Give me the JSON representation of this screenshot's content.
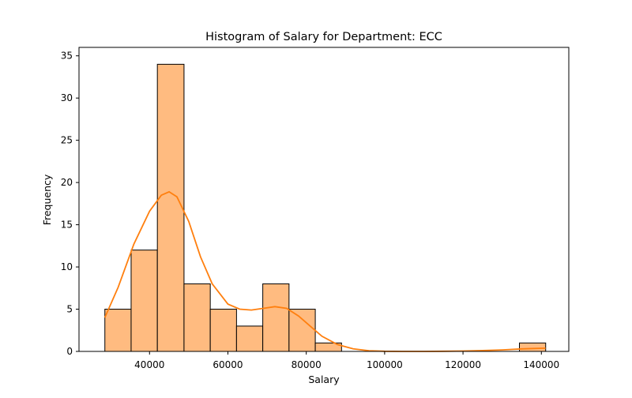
{
  "chart_data": {
    "type": "bar",
    "title": "Histogram of Salary for Department: ECC",
    "xlabel": "Salary",
    "ylabel": "Frequency",
    "xlim": [
      22000,
      147000
    ],
    "ylim": [
      0,
      36
    ],
    "xticks": [
      40000,
      60000,
      80000,
      100000,
      120000,
      140000
    ],
    "yticks": [
      0,
      5,
      10,
      15,
      20,
      25,
      30,
      35
    ],
    "bins": [
      {
        "x0": 28600,
        "x1": 35300,
        "count": 5
      },
      {
        "x0": 35300,
        "x1": 42000,
        "count": 12
      },
      {
        "x0": 42000,
        "x1": 48800,
        "count": 34
      },
      {
        "x0": 48800,
        "x1": 55500,
        "count": 8
      },
      {
        "x0": 55500,
        "x1": 62200,
        "count": 5
      },
      {
        "x0": 62200,
        "x1": 68900,
        "count": 3
      },
      {
        "x0": 68900,
        "x1": 75600,
        "count": 8
      },
      {
        "x0": 75600,
        "x1": 82300,
        "count": 5
      },
      {
        "x0": 82300,
        "x1": 89000,
        "count": 1
      },
      {
        "x0": 134400,
        "x1": 141100,
        "count": 1
      }
    ],
    "kde": {
      "x": [
        28600,
        32000,
        36000,
        40000,
        43000,
        45000,
        47000,
        50000,
        53000,
        56000,
        60000,
        63000,
        66000,
        69000,
        72000,
        75000,
        78000,
        81000,
        84000,
        88000,
        92000,
        96000,
        100000,
        105000,
        110000,
        115000,
        120000,
        125000,
        130000,
        135000,
        138000,
        141100
      ],
      "y": [
        4.0,
        7.6,
        12.7,
        16.6,
        18.5,
        18.9,
        18.3,
        15.4,
        11.2,
        8.0,
        5.6,
        5.0,
        4.9,
        5.1,
        5.3,
        5.1,
        4.2,
        3.0,
        1.8,
        0.8,
        0.3,
        0.08,
        0.02,
        0.0,
        0.0,
        0.02,
        0.05,
        0.1,
        0.18,
        0.3,
        0.35,
        0.38
      ]
    },
    "bar_fill": "#ffbb80",
    "bar_edge": "#000000",
    "line_color": "#ff7f0e",
    "grid": false,
    "legend": "none"
  }
}
